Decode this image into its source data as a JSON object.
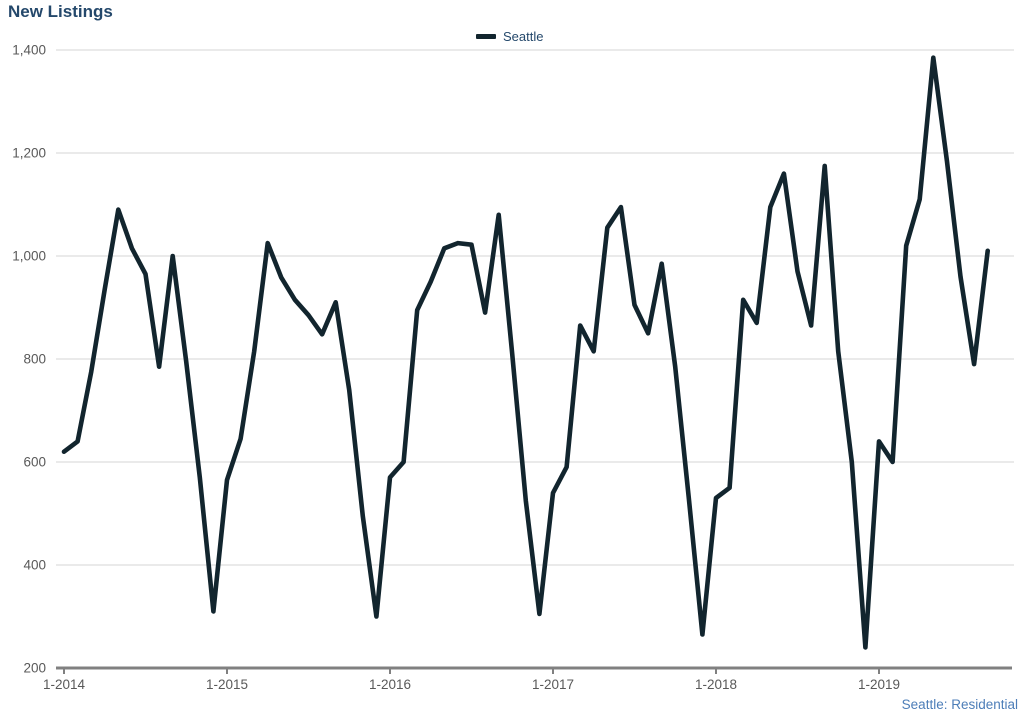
{
  "header": {
    "title": "New Listings"
  },
  "legend": {
    "items": [
      {
        "label": "Seattle",
        "swatch_color": "#12252e"
      }
    ]
  },
  "footer": {
    "note": "Seattle: Residential"
  },
  "colors": {
    "title_text": "#24486b",
    "legend_text": "#24486b",
    "footnote_text": "#4d7eb8",
    "tick_label_text": "#595959",
    "gridline": "#d4d4d4",
    "axis_line": "#808080",
    "series_seattle": "#12252e",
    "background": "#ffffff"
  },
  "chart_data": {
    "type": "line",
    "title": "New Listings",
    "xlabel": "",
    "ylabel": "",
    "x_start": "1-2014",
    "x_frequency": "monthly",
    "ylim": [
      200,
      1400
    ],
    "grid": "horizontal",
    "legend_position": "top-center",
    "y_ticks": [
      {
        "label": "1,400",
        "value": 1400
      },
      {
        "label": "1,200",
        "value": 1200
      },
      {
        "label": "1,000",
        "value": 1000
      },
      {
        "label": "800",
        "value": 800
      },
      {
        "label": "600",
        "value": 600
      },
      {
        "label": "400",
        "value": 400
      },
      {
        "label": "200",
        "value": 200
      }
    ],
    "x_ticks": [
      {
        "label": "1-2014",
        "month_index": 0
      },
      {
        "label": "1-2015",
        "month_index": 12
      },
      {
        "label": "1-2016",
        "month_index": 24
      },
      {
        "label": "1-2017",
        "month_index": 36
      },
      {
        "label": "1-2018",
        "month_index": 48
      },
      {
        "label": "1-2019",
        "month_index": 60
      }
    ],
    "series": [
      {
        "name": "Seattle",
        "color": "#12252e",
        "values": [
          620,
          640,
          775,
          935,
          1090,
          1015,
          965,
          785,
          1000,
          795,
          570,
          310,
          565,
          645,
          815,
          1025,
          958,
          915,
          885,
          848,
          910,
          740,
          495,
          300,
          570,
          600,
          895,
          950,
          1015,
          1025,
          1022,
          890,
          1080,
          810,
          525,
          305,
          540,
          590,
          865,
          815,
          1055,
          1095,
          905,
          850,
          985,
          785,
          530,
          265,
          530,
          550,
          915,
          870,
          1095,
          1160,
          970,
          865,
          1175,
          815,
          600,
          240,
          640,
          600,
          1020,
          1110,
          1385,
          1185,
          960,
          790,
          1010
        ]
      }
    ]
  }
}
